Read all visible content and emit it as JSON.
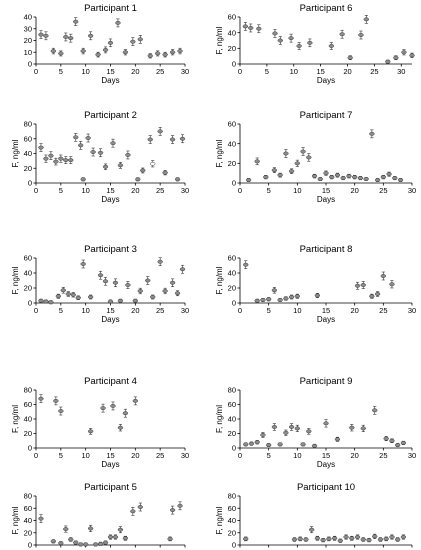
{
  "chart_data": [
    {
      "type": "scatter",
      "title": "Participant 1",
      "xlabel": "Days",
      "ylabel": "",
      "xlim": [
        0,
        30
      ],
      "ylim": [
        0,
        40
      ],
      "xticks": [
        "0",
        "5",
        "10",
        "15",
        "20",
        "25",
        "30"
      ],
      "yticks": [
        "0",
        "10",
        "20",
        "30",
        "40"
      ],
      "points": [
        {
          "x": 1,
          "y": 25
        },
        {
          "x": 2,
          "y": 24
        },
        {
          "x": 3.5,
          "y": 11
        },
        {
          "x": 5,
          "y": 9
        },
        {
          "x": 6,
          "y": 23
        },
        {
          "x": 7,
          "y": 22
        },
        {
          "x": 8,
          "y": 36
        },
        {
          "x": 9.5,
          "y": 11
        },
        {
          "x": 11,
          "y": 24
        },
        {
          "x": 12.5,
          "y": 8
        },
        {
          "x": 14,
          "y": 12
        },
        {
          "x": 15,
          "y": 18
        },
        {
          "x": 16.5,
          "y": 35
        },
        {
          "x": 18,
          "y": 10
        },
        {
          "x": 19.5,
          "y": 19
        },
        {
          "x": 21,
          "y": 21
        },
        {
          "x": 23,
          "y": 7
        },
        {
          "x": 24.5,
          "y": 9
        },
        {
          "x": 26,
          "y": 8
        },
        {
          "x": 27.5,
          "y": 10
        },
        {
          "x": 29,
          "y": 11
        }
      ]
    },
    {
      "type": "scatter",
      "title": "Participant 6",
      "xlabel": "Days",
      "ylabel": "F, ng/ml",
      "xlim": [
        0,
        32
      ],
      "ylim": [
        0,
        60
      ],
      "xticks": [
        "0",
        "5",
        "10",
        "15",
        "20",
        "25",
        "30"
      ],
      "yticks": [
        "0",
        "20",
        "40",
        "60"
      ],
      "points": [
        {
          "x": 1,
          "y": 48
        },
        {
          "x": 2,
          "y": 46
        },
        {
          "x": 3.5,
          "y": 45
        },
        {
          "x": 6.5,
          "y": 39
        },
        {
          "x": 7.5,
          "y": 30
        },
        {
          "x": 9.5,
          "y": 33
        },
        {
          "x": 11,
          "y": 23
        },
        {
          "x": 13,
          "y": 27
        },
        {
          "x": 17,
          "y": 23
        },
        {
          "x": 19,
          "y": 38
        },
        {
          "x": 20.5,
          "y": 8
        },
        {
          "x": 22.5,
          "y": 37
        },
        {
          "x": 23.5,
          "y": 57
        },
        {
          "x": 27.5,
          "y": 3
        },
        {
          "x": 29,
          "y": 8
        },
        {
          "x": 30.5,
          "y": 15
        },
        {
          "x": 32,
          "y": 11
        }
      ]
    },
    {
      "type": "scatter",
      "title": "Participant 2",
      "xlabel": "Days",
      "ylabel": "F, ng/ml",
      "xlim": [
        0,
        30
      ],
      "ylim": [
        0,
        80
      ],
      "xticks": [
        "0",
        "5",
        "10",
        "15",
        "20",
        "25",
        "30"
      ],
      "yticks": [
        "0",
        "20",
        "40",
        "60",
        "80"
      ],
      "points": [
        {
          "x": 1,
          "y": 48
        },
        {
          "x": 2,
          "y": 33
        },
        {
          "x": 3,
          "y": 37
        },
        {
          "x": 4,
          "y": 29
        },
        {
          "x": 5,
          "y": 33
        },
        {
          "x": 6,
          "y": 31
        },
        {
          "x": 7,
          "y": 31
        },
        {
          "x": 8,
          "y": 62
        },
        {
          "x": 9,
          "y": 51
        },
        {
          "x": 9.5,
          "y": 5
        },
        {
          "x": 10.5,
          "y": 61
        },
        {
          "x": 11.5,
          "y": 42
        },
        {
          "x": 13,
          "y": 41
        },
        {
          "x": 14,
          "y": 22
        },
        {
          "x": 15.5,
          "y": 54
        },
        {
          "x": 17,
          "y": 24
        },
        {
          "x": 18.5,
          "y": 38
        },
        {
          "x": 20.5,
          "y": 5
        },
        {
          "x": 21.5,
          "y": 17
        },
        {
          "x": 23,
          "y": 59
        },
        {
          "x": 23.5,
          "y": 26,
          "open": true
        },
        {
          "x": 25,
          "y": 70
        },
        {
          "x": 26,
          "y": 14
        },
        {
          "x": 27.5,
          "y": 59
        },
        {
          "x": 28.5,
          "y": 5
        },
        {
          "x": 29.5,
          "y": 60
        }
      ]
    },
    {
      "type": "scatter",
      "title": "Participant 7",
      "xlabel": "Days",
      "ylabel": "F, ng/ml",
      "xlim": [
        0,
        30
      ],
      "ylim": [
        0,
        60
      ],
      "xticks": [
        "0",
        "5",
        "10",
        "15",
        "20",
        "25",
        "30"
      ],
      "yticks": [
        "0",
        "20",
        "40",
        "60"
      ],
      "points": [
        {
          "x": 1.5,
          "y": 3
        },
        {
          "x": 3,
          "y": 22
        },
        {
          "x": 4.5,
          "y": 6
        },
        {
          "x": 6,
          "y": 13
        },
        {
          "x": 7,
          "y": 8
        },
        {
          "x": 8,
          "y": 30
        },
        {
          "x": 9,
          "y": 12
        },
        {
          "x": 10,
          "y": 20
        },
        {
          "x": 11,
          "y": 32
        },
        {
          "x": 12,
          "y": 26
        },
        {
          "x": 13,
          "y": 7
        },
        {
          "x": 14,
          "y": 4
        },
        {
          "x": 15,
          "y": 10
        },
        {
          "x": 16,
          "y": 6
        },
        {
          "x": 17,
          "y": 8
        },
        {
          "x": 18,
          "y": 5
        },
        {
          "x": 19,
          "y": 7
        },
        {
          "x": 20,
          "y": 6
        },
        {
          "x": 21,
          "y": 5
        },
        {
          "x": 22,
          "y": 4
        },
        {
          "x": 23,
          "y": 50
        },
        {
          "x": 24,
          "y": 3
        },
        {
          "x": 25,
          "y": 6
        },
        {
          "x": 26,
          "y": 9
        },
        {
          "x": 27,
          "y": 5
        },
        {
          "x": 28,
          "y": 3
        }
      ]
    },
    {
      "type": "scatter",
      "title": "Participant 3",
      "xlabel": "Days",
      "ylabel": "F, ng/ml",
      "xlim": [
        0,
        30
      ],
      "ylim": [
        0,
        60
      ],
      "xticks": [
        "0",
        "5",
        "10",
        "15",
        "20",
        "25",
        "30"
      ],
      "yticks": [
        "0",
        "20",
        "40",
        "60"
      ],
      "points": [
        {
          "x": 1,
          "y": 3
        },
        {
          "x": 2,
          "y": 2
        },
        {
          "x": 3,
          "y": 1
        },
        {
          "x": 4.5,
          "y": 9
        },
        {
          "x": 5.5,
          "y": 17
        },
        {
          "x": 6.5,
          "y": 12
        },
        {
          "x": 7.5,
          "y": 11
        },
        {
          "x": 8.5,
          "y": 7
        },
        {
          "x": 9.5,
          "y": 52
        },
        {
          "x": 11,
          "y": 8
        },
        {
          "x": 13,
          "y": 37
        },
        {
          "x": 14,
          "y": 29
        },
        {
          "x": 15,
          "y": 2
        },
        {
          "x": 16,
          "y": 27
        },
        {
          "x": 17,
          "y": 3
        },
        {
          "x": 18.5,
          "y": 24
        },
        {
          "x": 20,
          "y": 3
        },
        {
          "x": 21,
          "y": 16
        },
        {
          "x": 22.5,
          "y": 30
        },
        {
          "x": 23.5,
          "y": 8
        },
        {
          "x": 25,
          "y": 55
        },
        {
          "x": 26,
          "y": 16
        },
        {
          "x": 27.5,
          "y": 27
        },
        {
          "x": 28.5,
          "y": 13
        },
        {
          "x": 29.5,
          "y": 45
        }
      ]
    },
    {
      "type": "scatter",
      "title": "Participant 8",
      "xlabel": "Days",
      "ylabel": "F, ng/ml",
      "xlim": [
        0,
        30
      ],
      "ylim": [
        0,
        60
      ],
      "xticks": [
        "0",
        "5",
        "10",
        "15",
        "20",
        "25",
        "30"
      ],
      "yticks": [
        "0",
        "20",
        "40",
        "60"
      ],
      "points": [
        {
          "x": 1,
          "y": 51
        },
        {
          "x": 3,
          "y": 3
        },
        {
          "x": 4,
          "y": 4
        },
        {
          "x": 5,
          "y": 5
        },
        {
          "x": 6,
          "y": 17
        },
        {
          "x": 7,
          "y": 4
        },
        {
          "x": 8,
          "y": 6
        },
        {
          "x": 9,
          "y": 8
        },
        {
          "x": 10,
          "y": 9
        },
        {
          "x": 13.5,
          "y": 10
        },
        {
          "x": 20.5,
          "y": 23
        },
        {
          "x": 21.5,
          "y": 24
        },
        {
          "x": 23,
          "y": 9
        },
        {
          "x": 24,
          "y": 12
        },
        {
          "x": 25,
          "y": 36
        },
        {
          "x": 26.5,
          "y": 25
        }
      ]
    },
    {
      "type": "scatter",
      "title": "Participant 4",
      "xlabel": "Days",
      "ylabel": "F, ng/ml",
      "xlim": [
        0,
        30
      ],
      "ylim": [
        0,
        80
      ],
      "xticks": [
        "0",
        "5",
        "10",
        "15",
        "20",
        "25",
        "30"
      ],
      "yticks": [
        "0",
        "20",
        "40",
        "60",
        "80"
      ],
      "points": [
        {
          "x": 1,
          "y": 68
        },
        {
          "x": 4,
          "y": 65
        },
        {
          "x": 5,
          "y": 51
        },
        {
          "x": 11,
          "y": 23
        },
        {
          "x": 13.5,
          "y": 55
        },
        {
          "x": 15.5,
          "y": 58
        },
        {
          "x": 17,
          "y": 28
        },
        {
          "x": 18,
          "y": 48
        },
        {
          "x": 20,
          "y": 65
        }
      ]
    },
    {
      "type": "scatter",
      "title": "Participant 9",
      "xlabel": "Days",
      "ylabel": "F, ng/ml",
      "xlim": [
        0,
        30
      ],
      "ylim": [
        0,
        80
      ],
      "xticks": [
        "0",
        "5",
        "10",
        "15",
        "20",
        "25",
        "30"
      ],
      "yticks": [
        "0",
        "20",
        "40",
        "60",
        "80"
      ],
      "points": [
        {
          "x": 1,
          "y": 5
        },
        {
          "x": 2,
          "y": 6
        },
        {
          "x": 3,
          "y": 8
        },
        {
          "x": 4,
          "y": 18
        },
        {
          "x": 5,
          "y": 4
        },
        {
          "x": 6,
          "y": 29
        },
        {
          "x": 7,
          "y": 5
        },
        {
          "x": 8,
          "y": 21
        },
        {
          "x": 9,
          "y": 29
        },
        {
          "x": 10,
          "y": 27
        },
        {
          "x": 11,
          "y": 5
        },
        {
          "x": 12,
          "y": 23
        },
        {
          "x": 13,
          "y": 3
        },
        {
          "x": 15,
          "y": 34
        },
        {
          "x": 17,
          "y": 12
        },
        {
          "x": 19.5,
          "y": 28
        },
        {
          "x": 21.5,
          "y": 27
        },
        {
          "x": 23.5,
          "y": 52
        },
        {
          "x": 25.5,
          "y": 13
        },
        {
          "x": 26.5,
          "y": 10
        },
        {
          "x": 27.5,
          "y": 4
        },
        {
          "x": 28.5,
          "y": 7
        }
      ]
    },
    {
      "type": "scatter",
      "title": "Participant 5",
      "xlabel": "Days",
      "ylabel": "F, ng/ml",
      "xlim": [
        0,
        30
      ],
      "ylim": [
        0,
        80
      ],
      "xticks": [
        "0",
        "5",
        "10",
        "15",
        "20",
        "25",
        "30"
      ],
      "yticks": [
        "0",
        "20",
        "40",
        "60",
        "80"
      ],
      "points": [
        {
          "x": 1,
          "y": 43
        },
        {
          "x": 3.5,
          "y": 6
        },
        {
          "x": 5,
          "y": 3
        },
        {
          "x": 6,
          "y": 26
        },
        {
          "x": 7,
          "y": 9
        },
        {
          "x": 8,
          "y": 4
        },
        {
          "x": 9,
          "y": 1
        },
        {
          "x": 10,
          "y": 1
        },
        {
          "x": 11,
          "y": 27
        },
        {
          "x": 12,
          "y": 1
        },
        {
          "x": 13,
          "y": 2
        },
        {
          "x": 14,
          "y": 4
        },
        {
          "x": 15,
          "y": 13
        },
        {
          "x": 16,
          "y": 13
        },
        {
          "x": 17,
          "y": 25
        },
        {
          "x": 18,
          "y": 11
        },
        {
          "x": 19.5,
          "y": 55
        },
        {
          "x": 21,
          "y": 62
        },
        {
          "x": 27,
          "y": 10
        },
        {
          "x": 27.5,
          "y": 57
        },
        {
          "x": 29,
          "y": 64
        }
      ]
    },
    {
      "type": "scatter",
      "title": "Participant 10",
      "xlabel": "Days",
      "ylabel": "F, ng/ml",
      "xlim": [
        0,
        30
      ],
      "ylim": [
        0,
        80
      ],
      "xticks": [
        "0",
        "5",
        "10",
        "15",
        "20",
        "25",
        "30"
      ],
      "yticks": [
        "0",
        "20",
        "40",
        "60",
        "80"
      ],
      "points": [
        {
          "x": 1,
          "y": 10
        },
        {
          "x": 9.5,
          "y": 9
        },
        {
          "x": 10.5,
          "y": 10
        },
        {
          "x": 11.5,
          "y": 9
        },
        {
          "x": 12.5,
          "y": 25
        },
        {
          "x": 13.5,
          "y": 11
        },
        {
          "x": 14.5,
          "y": 8
        },
        {
          "x": 15.5,
          "y": 10
        },
        {
          "x": 16.5,
          "y": 11
        },
        {
          "x": 17.5,
          "y": 7
        },
        {
          "x": 18.5,
          "y": 13
        },
        {
          "x": 19.5,
          "y": 11
        },
        {
          "x": 20.5,
          "y": 13
        },
        {
          "x": 21.5,
          "y": 9
        },
        {
          "x": 22.5,
          "y": 8
        },
        {
          "x": 23.5,
          "y": 14
        },
        {
          "x": 24.5,
          "y": 9
        },
        {
          "x": 25.5,
          "y": 10
        },
        {
          "x": 26.5,
          "y": 13
        },
        {
          "x": 27.5,
          "y": 9
        },
        {
          "x": 28.5,
          "y": 13
        }
      ]
    }
  ]
}
